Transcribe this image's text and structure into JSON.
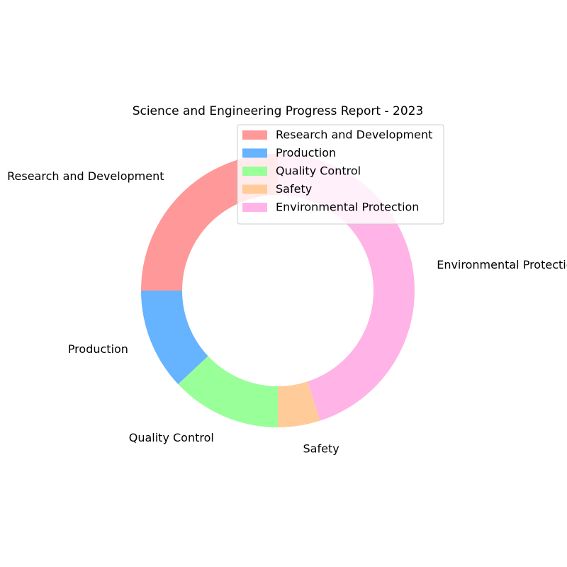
{
  "chart_data": {
    "type": "pie",
    "style": "donut",
    "title": "Science and Engineering Progress Report - 2023",
    "categories": [
      "Research and Development",
      "Production",
      "Quality Control",
      "Safety",
      "Environmental Protection"
    ],
    "values": [
      25,
      12,
      13,
      5,
      45
    ],
    "colors": [
      "#ff9999",
      "#66b3ff",
      "#99ff99",
      "#ffcc99",
      "#ffb3e6"
    ],
    "legend": {
      "position": "upper-right",
      "entries": [
        "Research and Development",
        "Production",
        "Quality Control",
        "Safety",
        "Environmental Protection"
      ]
    }
  }
}
